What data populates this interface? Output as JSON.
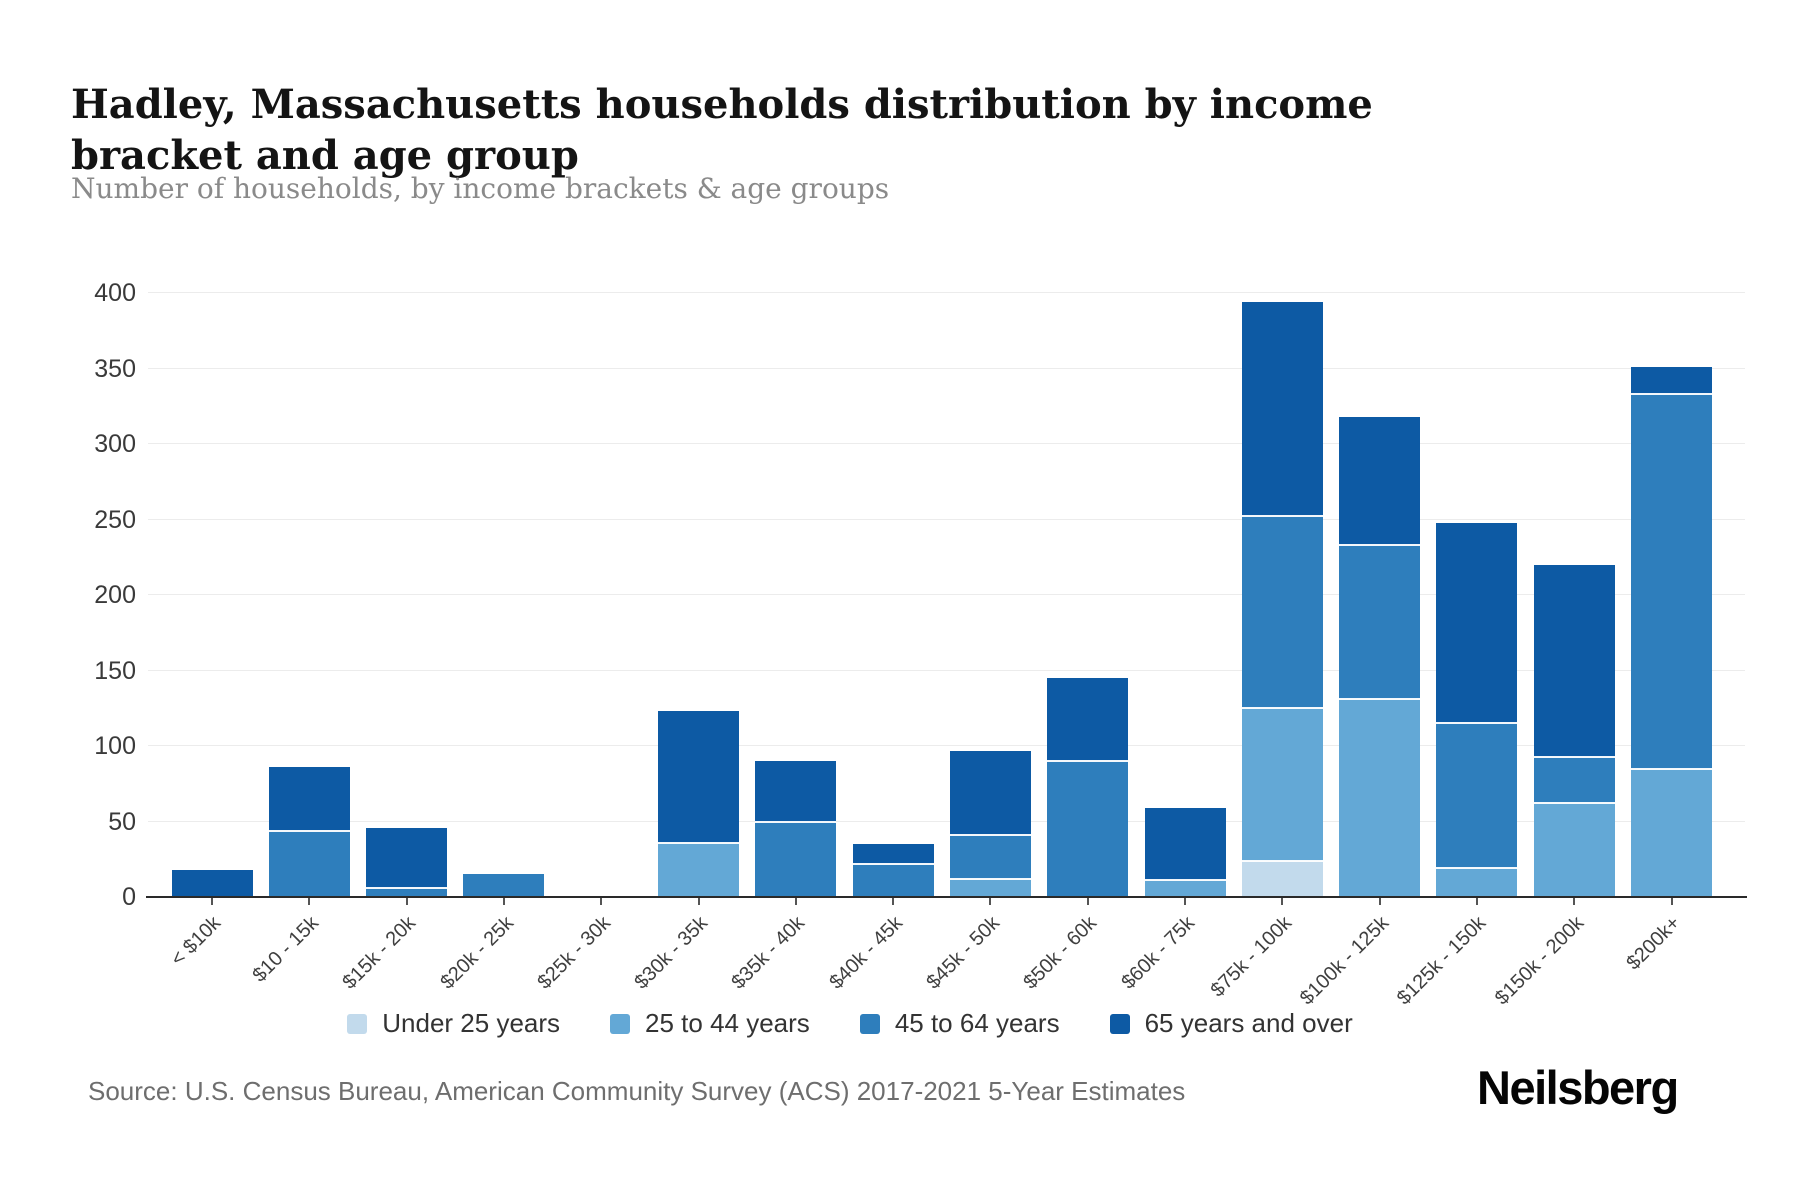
{
  "header": {
    "title": "Hadley, Massachusetts households distribution by income bracket and age group",
    "subtitle": "Number of households, by income brackets & age groups"
  },
  "footer": {
    "source": "Source: U.S. Census Bureau, American Community Survey (ACS) 2017-2021 5-Year Estimates",
    "logo_text": "Neilsberg"
  },
  "chart_data": {
    "type": "bar",
    "stacked": true,
    "title": "Hadley, Massachusetts households distribution by income bracket and age group",
    "xlabel": "",
    "ylabel": "Number of households",
    "ylim": [
      0,
      400
    ],
    "ytick_step": 50,
    "grid": true,
    "legend_position": "bottom",
    "categories": [
      "< $10k",
      "$10 - 15k",
      "$15k - 20k",
      "$20k - 25k",
      "$25k - 30k",
      "$30k - 35k",
      "$35k - 40k",
      "$40k - 45k",
      "$45k - 50k",
      "$50k - 60k",
      "$60k - 75k",
      "$75k - 100k",
      "$100k - 125k",
      "$125k - 150k",
      "$150k - 200k",
      "$200k+"
    ],
    "series": [
      {
        "name": "Under 25 years",
        "color": "#c2daec",
        "values": [
          0,
          0,
          0,
          0,
          0,
          0,
          0,
          0,
          0,
          0,
          0,
          24,
          0,
          0,
          0,
          0
        ]
      },
      {
        "name": "25 to 44 years",
        "color": "#63a8d6",
        "values": [
          0,
          0,
          0,
          0,
          0,
          36,
          0,
          0,
          12,
          0,
          11,
          101,
          131,
          19,
          62,
          85
        ]
      },
      {
        "name": "45 to 64 years",
        "color": "#2e7ebc",
        "values": [
          0,
          44,
          6,
          15,
          0,
          0,
          50,
          22,
          29,
          90,
          0,
          127,
          102,
          96,
          31,
          248
        ]
      },
      {
        "name": "65 years and over",
        "color": "#0d5aa4",
        "values": [
          18,
          42,
          40,
          0,
          0,
          87,
          40,
          13,
          56,
          55,
          48,
          142,
          85,
          133,
          127,
          18
        ]
      }
    ],
    "totals": [
      18,
      86,
      46,
      15,
      0,
      123,
      90,
      35,
      97,
      145,
      59,
      394,
      318,
      248,
      220,
      351
    ]
  }
}
